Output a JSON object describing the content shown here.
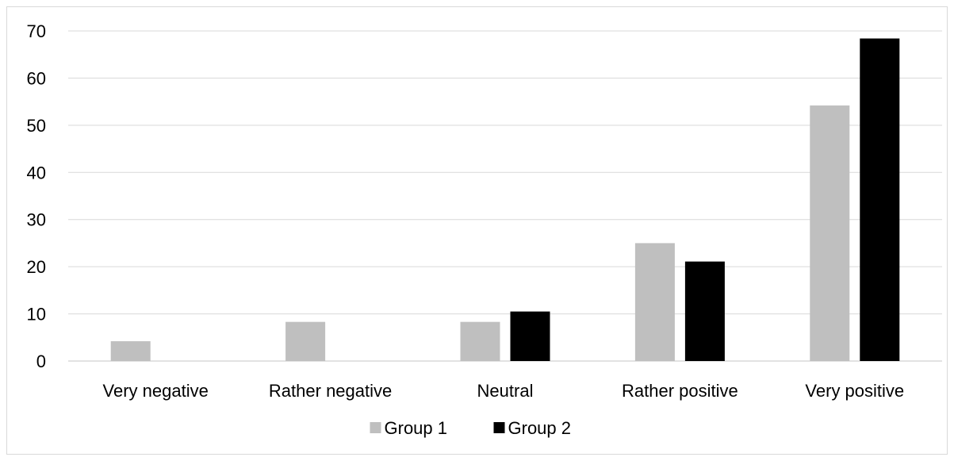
{
  "chart_data": {
    "type": "bar",
    "title": "",
    "xlabel": "",
    "ylabel": "",
    "categories": [
      "Very negative",
      "Rather negative",
      "Neutral",
      "Rather positive",
      "Very positive"
    ],
    "series": [
      {
        "name": "Group 1",
        "color": "#bfbfbf",
        "values": [
          4.2,
          8.3,
          8.3,
          25.0,
          54.2
        ]
      },
      {
        "name": "Group 2",
        "color": "#000000",
        "values": [
          0,
          0,
          10.5,
          21.1,
          68.4
        ]
      }
    ],
    "ylim": [
      0,
      70
    ],
    "yticks": [
      "0",
      "10",
      "20",
      "30",
      "40",
      "50",
      "60",
      "70"
    ],
    "grid": true,
    "legend_position": "bottom"
  }
}
